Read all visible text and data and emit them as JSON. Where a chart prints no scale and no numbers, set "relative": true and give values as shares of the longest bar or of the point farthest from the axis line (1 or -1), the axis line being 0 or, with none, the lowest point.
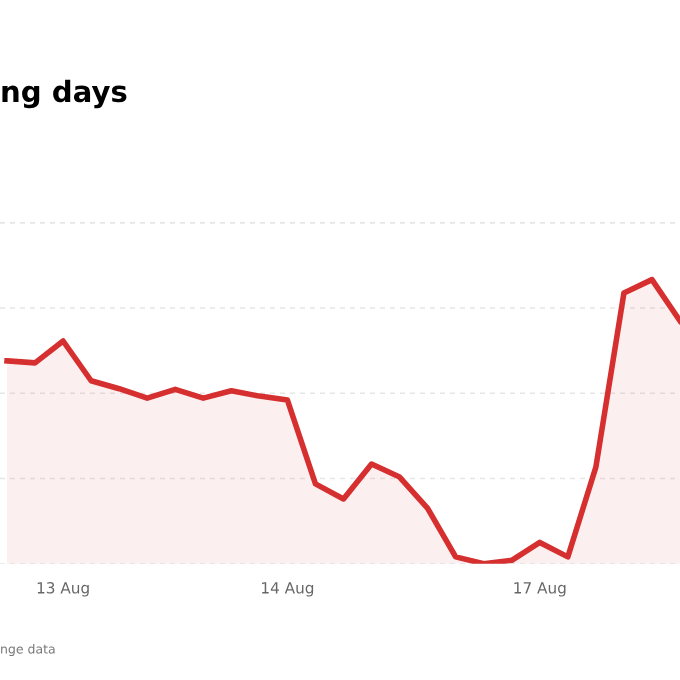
{
  "chart_data": {
    "type": "area",
    "title": "ng days",
    "annotations": [
      "nge data"
    ],
    "relative": true,
    "grid": "y",
    "legend": false,
    "categories": [
      null,
      null,
      "13 Aug",
      null,
      null,
      null,
      null,
      null,
      null,
      null,
      "14 Aug",
      null,
      null,
      null,
      null,
      null,
      null,
      null,
      null,
      "17 Aug",
      null,
      null,
      null,
      null,
      null
    ],
    "series": [
      {
        "color": "#d62f2f",
        "values": [
          0.714,
          0.707,
          0.784,
          0.644,
          0.616,
          0.583,
          0.614,
          0.583,
          0.609,
          0.59,
          0.576,
          0.281,
          0.228,
          0.351,
          0.305,
          0.195,
          0.024,
          0.0,
          0.012,
          0.075,
          0.024,
          0.34,
          0.953,
          1.0,
          0.855
        ]
      }
    ]
  }
}
